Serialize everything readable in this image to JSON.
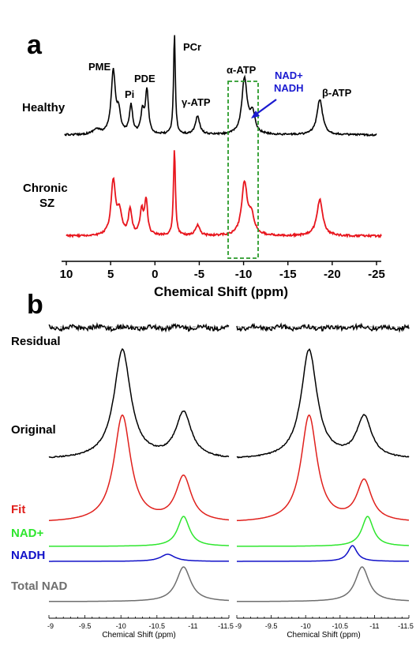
{
  "colors": {
    "healthy": "#000000",
    "chronic": "#e8151d",
    "fit": "#e0201c",
    "nadplus": "#2ee62e",
    "nadh": "#1010c8",
    "total": "#6e6e6e",
    "box": "#2a9a2a",
    "arrow": "#1a1ad0"
  },
  "panel_a": {
    "letter": "a",
    "healthy_label": "Healthy",
    "chronic_label_1": "Chronic",
    "chronic_label_2": "SZ",
    "peaks": {
      "pme": "PME",
      "pi": "Pi",
      "pde": "PDE",
      "pcr": "PCr",
      "gatp": "γ-ATP",
      "aatp": "α-ATP",
      "batp": "β-ATP",
      "nadplus": "NAD+",
      "nadh": "NADH"
    },
    "xlabel": "Chemical Shift (ppm)"
  },
  "panel_b": {
    "letter": "b",
    "labels": {
      "residual": "Residual",
      "original": "Original",
      "fit": "Fit",
      "nadplus": "NAD+",
      "nadh": "NADH",
      "total": "Total NAD"
    },
    "xlabel": "Chemical Shift (ppm)"
  },
  "chart_data": [
    {
      "type": "line",
      "panel": "a",
      "xlabel": "Chemical Shift (ppm)",
      "xlim": [
        10,
        -25
      ],
      "x_ticks": [
        10,
        5,
        0,
        -5,
        -10,
        -15,
        -20,
        -25
      ],
      "x_tick_labels": [
        "10",
        "5",
        "0",
        "-5",
        "-10",
        "-15",
        "-20",
        "-25"
      ],
      "series": [
        {
          "name": "Healthy",
          "peaks": [
            {
              "ppm": 6.6,
              "amp": 0.05,
              "w": 0.5
            },
            {
              "ppm": 4.7,
              "amp": 0.62,
              "w": 0.28
            },
            {
              "ppm": 4.1,
              "amp": 0.2,
              "w": 0.25
            },
            {
              "ppm": 2.7,
              "amp": 0.28,
              "w": 0.22
            },
            {
              "ppm": 1.4,
              "amp": 0.22,
              "w": 0.22
            },
            {
              "ppm": 0.9,
              "amp": 0.43,
              "w": 0.2
            },
            {
              "ppm": -2.2,
              "amp": 1.0,
              "w": 0.12
            },
            {
              "ppm": -4.8,
              "amp": 0.18,
              "w": 0.3
            },
            {
              "ppm": -10.1,
              "amp": 0.55,
              "w": 0.35
            },
            {
              "ppm": -11.0,
              "amp": 0.2,
              "w": 0.35
            },
            {
              "ppm": -18.6,
              "amp": 0.35,
              "w": 0.38
            }
          ]
        },
        {
          "name": "Chronic SZ",
          "peaks": [
            {
              "ppm": 4.7,
              "amp": 0.62,
              "w": 0.3
            },
            {
              "ppm": 4.0,
              "amp": 0.25,
              "w": 0.3
            },
            {
              "ppm": 2.8,
              "amp": 0.3,
              "w": 0.22
            },
            {
              "ppm": 1.5,
              "amp": 0.28,
              "w": 0.22
            },
            {
              "ppm": 1.0,
              "amp": 0.4,
              "w": 0.2
            },
            {
              "ppm": -2.2,
              "amp": 1.0,
              "w": 0.13
            },
            {
              "ppm": -4.8,
              "amp": 0.12,
              "w": 0.3
            },
            {
              "ppm": -10.1,
              "amp": 0.6,
              "w": 0.38
            },
            {
              "ppm": -10.9,
              "amp": 0.2,
              "w": 0.4
            },
            {
              "ppm": -18.6,
              "amp": 0.42,
              "w": 0.4
            }
          ]
        }
      ],
      "highlight_region": [
        -8.5,
        -11.8
      ]
    },
    {
      "type": "line",
      "panel": "b-left",
      "xlabel": "Chemical Shift (ppm)",
      "xlim": [
        -9,
        -11.5
      ],
      "x_ticks": [
        -9,
        -9.5,
        -10,
        -10.5,
        -11,
        -11.5
      ],
      "x_tick_labels": [
        "-9",
        "-9.5",
        "-10",
        "-10.5",
        "-11",
        "-11.5"
      ],
      "series": [
        {
          "name": "Residual"
        },
        {
          "name": "Original",
          "peaks": [
            {
              "ppm": -10.02,
              "amp": 1.0,
              "w": 0.14
            },
            {
              "ppm": -10.87,
              "amp": 0.42,
              "w": 0.13
            }
          ]
        },
        {
          "name": "Fit",
          "peaks": [
            {
              "ppm": -10.02,
              "amp": 1.0,
              "w": 0.14
            },
            {
              "ppm": -10.87,
              "amp": 0.42,
              "w": 0.13
            }
          ]
        },
        {
          "name": "NAD+",
          "peaks": [
            {
              "ppm": -10.87,
              "amp": 1.0,
              "w": 0.1
            }
          ]
        },
        {
          "name": "NADH",
          "peaks": [
            {
              "ppm": -10.65,
              "amp": 1.0,
              "w": 0.12
            }
          ]
        },
        {
          "name": "Total NAD",
          "peaks": [
            {
              "ppm": -10.87,
              "amp": 1.0,
              "w": 0.12
            }
          ]
        }
      ]
    },
    {
      "type": "line",
      "panel": "b-right",
      "xlabel": "Chemical Shift (ppm)",
      "xlim": [
        -9,
        -11.5
      ],
      "x_ticks": [
        -9,
        -9.5,
        -10,
        -10.5,
        -11,
        -11.5
      ],
      "x_tick_labels": [
        "-9",
        "-9.5",
        "-10",
        "-10.5",
        "-11",
        "-11.5"
      ],
      "series": [
        {
          "name": "Residual"
        },
        {
          "name": "Original",
          "peaks": [
            {
              "ppm": -10.05,
              "amp": 1.0,
              "w": 0.14
            },
            {
              "ppm": -10.85,
              "amp": 0.38,
              "w": 0.13
            }
          ]
        },
        {
          "name": "Fit",
          "peaks": [
            {
              "ppm": -10.05,
              "amp": 1.0,
              "w": 0.14
            },
            {
              "ppm": -10.85,
              "amp": 0.38,
              "w": 0.13
            }
          ]
        },
        {
          "name": "NAD+",
          "peaks": [
            {
              "ppm": -10.9,
              "amp": 1.0,
              "w": 0.1
            }
          ]
        },
        {
          "name": "NADH",
          "peaks": [
            {
              "ppm": -10.68,
              "amp": 1.0,
              "w": 0.08
            }
          ]
        },
        {
          "name": "Total NAD",
          "peaks": [
            {
              "ppm": -10.82,
              "amp": 1.0,
              "w": 0.12
            }
          ]
        }
      ]
    }
  ]
}
